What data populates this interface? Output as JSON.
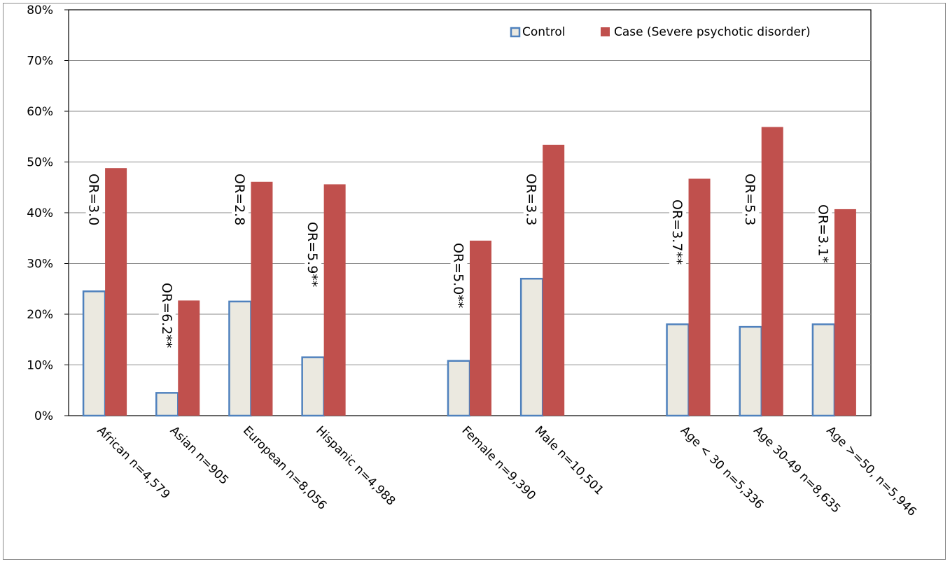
{
  "chart_data": {
    "type": "bar",
    "title": "",
    "xlabel": "",
    "ylabel": "",
    "ylim": [
      0,
      80
    ],
    "y_tick_labels": [
      "0%",
      "10%",
      "20%",
      "30%",
      "40%",
      "50%",
      "60%",
      "70%",
      "80%"
    ],
    "grid": true,
    "legend_position": "top-right",
    "groups": [
      {
        "categories": [
          "African n=4,579",
          "Asian n=905",
          "European n=8,056",
          "Hispanic n=4,988"
        ]
      },
      {
        "categories": [
          "Female n=9,390",
          "Male n=10,501"
        ]
      },
      {
        "categories": [
          "Age < 30 n=5,336",
          "Age 30-49 n=8,635",
          "Age >=50, n=5,946"
        ]
      }
    ],
    "categories": [
      "African n=4,579",
      "Asian n=905",
      "European n=8,056",
      "Hispanic n=4,988",
      "Female n=9,390",
      "Male n=10,501",
      "Age < 30 n=5,336",
      "Age 30-49 n=8,635",
      "Age >=50, n=5,946"
    ],
    "series": [
      {
        "name": "Control",
        "values": [
          24.5,
          4.5,
          22.5,
          11.5,
          10.8,
          27.0,
          18.0,
          17.5,
          18.0
        ],
        "color": "#ebe9e0",
        "stroke": "#4f81bd"
      },
      {
        "name": "Case (Severe psychotic disorder)",
        "values": [
          48.8,
          22.7,
          46.1,
          45.6,
          34.5,
          53.4,
          46.7,
          56.9,
          40.7
        ],
        "color": "#c0504d"
      }
    ],
    "annotations": [
      "OR=3.0",
      "OR=6.2**",
      "OR=2.8",
      "OR=5.9**",
      "OR=5.0**",
      "OR=3.3",
      "OR=3.7**",
      "OR=5.3",
      "OR=3.1*"
    ]
  }
}
